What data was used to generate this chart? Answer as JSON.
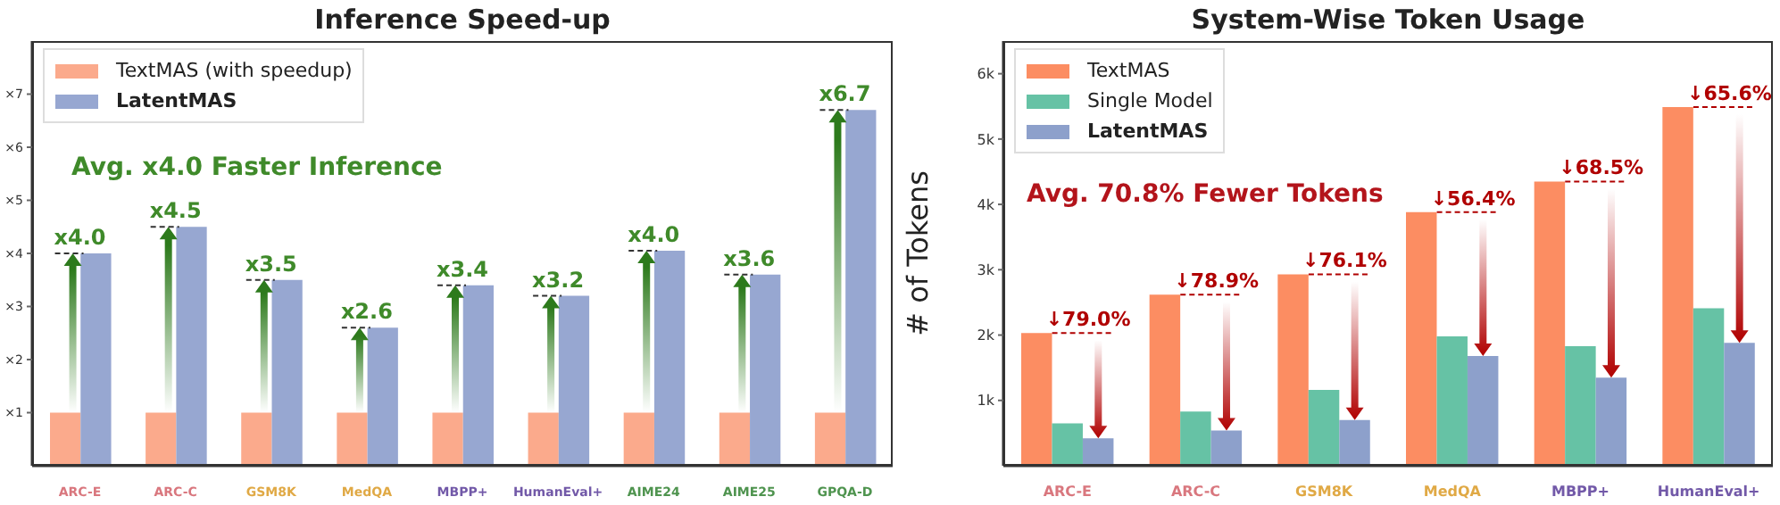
{
  "chart_data": [
    {
      "type": "bar",
      "title": "Inference Speed-up",
      "categories": [
        "ARC-E",
        "ARC-C",
        "GSM8K",
        "MedQA",
        "MBPP+",
        "HumanEval+",
        "AIME24",
        "AIME25",
        "GPQA-D"
      ],
      "series": [
        {
          "name": "TextMAS (with speedup)",
          "color": "#fbaa8c",
          "values": [
            1,
            1,
            1,
            1,
            1,
            1,
            1,
            1,
            1
          ]
        },
        {
          "name": "LatentMAS",
          "color": "#97a7d1",
          "values": [
            4.0,
            4.5,
            3.5,
            2.6,
            3.4,
            3.2,
            4.05,
            3.6,
            6.7
          ],
          "value_labels": [
            "x4.0",
            "x4.5",
            "x3.5",
            "x2.6",
            "x3.4",
            "x3.2",
            "x4.0",
            "x3.6",
            "x6.7"
          ]
        }
      ],
      "ylim": [
        0,
        8
      ],
      "yticks": [
        {
          "value": 1,
          "label": "×1"
        },
        {
          "value": 2,
          "label": "×2"
        },
        {
          "value": 3,
          "label": "×3"
        },
        {
          "value": 4,
          "label": "×4"
        },
        {
          "value": 5,
          "label": "×5"
        },
        {
          "value": 6,
          "label": "×6"
        },
        {
          "value": 7,
          "label": "×7"
        }
      ],
      "legend": "top left",
      "annotations": [
        "Avg. x4.0 Faster Inference"
      ]
    },
    {
      "type": "bar",
      "title": "System-Wise Token Usage",
      "ylabel": "# of Tokens",
      "categories": [
        "ARC-E",
        "ARC-C",
        "GSM8K",
        "MedQA",
        "MBPP+",
        "HumanEval+"
      ],
      "series": [
        {
          "name": "TextMAS",
          "color": "#fc8d62",
          "values": [
            2030,
            2620,
            2930,
            3880,
            4350,
            5490
          ]
        },
        {
          "name": "Single Model",
          "color": "#66c2a5",
          "values": [
            650,
            830,
            1160,
            1980,
            1830,
            2410
          ]
        },
        {
          "name": "LatentMAS",
          "color": "#8da0cb",
          "values": [
            420,
            540,
            700,
            1680,
            1350,
            1880
          ]
        }
      ],
      "ylim": [
        0,
        6500
      ],
      "yticks": [
        {
          "value": 1000,
          "label": "1k"
        },
        {
          "value": 2000,
          "label": "2k"
        },
        {
          "value": 3000,
          "label": "3k"
        },
        {
          "value": 4000,
          "label": "4k"
        },
        {
          "value": 5000,
          "label": "5k"
        },
        {
          "value": 6000,
          "label": "6k"
        }
      ],
      "legend": "top left",
      "annotations": [
        "Avg. 70.8% Fewer Tokens",
        "↓79.0%",
        "↓78.9%",
        "↓76.1%",
        "↓56.4%",
        "↓68.5%",
        "↓65.6%"
      ]
    }
  ]
}
